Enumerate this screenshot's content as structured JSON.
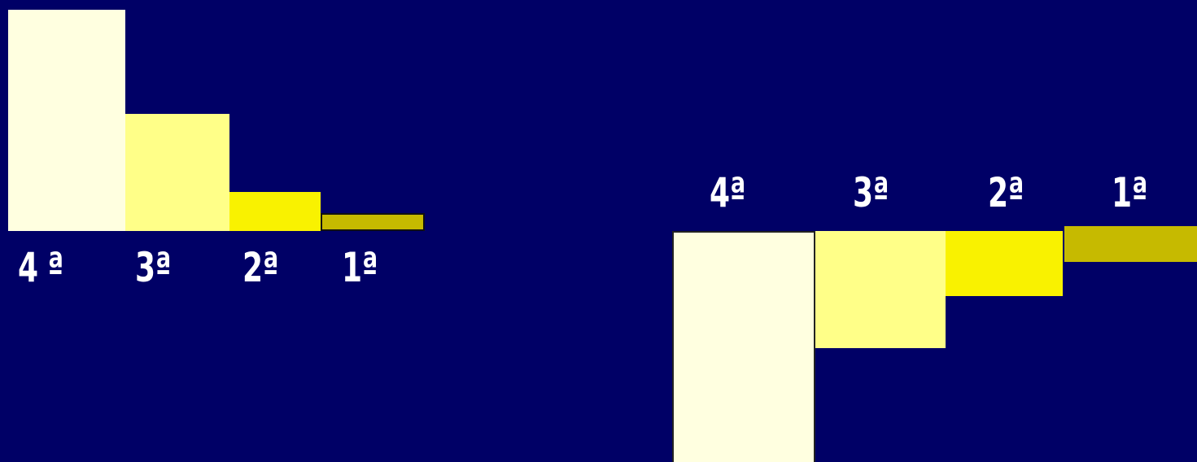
{
  "colors": {
    "background": "#000066",
    "shade_4": "#ffffe0",
    "shade_3": "#ffff88",
    "shade_2": "#f9f200",
    "shade_1": "#c6ba00",
    "label": "#ffffff"
  },
  "left_group": {
    "labels": [
      "4 ª",
      "3ª",
      "2ª",
      "1ª"
    ]
  },
  "right_group": {
    "labels": [
      "4ª",
      "3ª",
      "2ª",
      "1ª"
    ]
  }
}
